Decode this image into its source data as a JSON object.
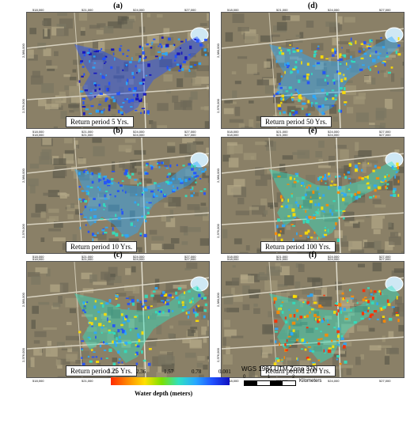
{
  "panels": [
    {
      "letter": "(a)",
      "label": "Return period 5 Yrs."
    },
    {
      "letter": "(d)",
      "label": "Return period 50 Yrs."
    },
    {
      "letter": "(b)",
      "label": "Return period 10 Yrs."
    },
    {
      "letter": "(e)",
      "label": "Return period 100 Yrs."
    },
    {
      "letter": "(c)",
      "label": "Return period 25 Yrs."
    },
    {
      "letter": "(f)",
      "label": "Return period 200 Yrs."
    }
  ],
  "x_ticks": [
    "518,000",
    "521,000",
    "524,000",
    "527,000"
  ],
  "y_ticks": [
    "2,380,000",
    "2,376,000"
  ],
  "legend": {
    "values": [
      "3.15",
      "2.36",
      "1.57",
      "0.78",
      "0.001"
    ],
    "title": "Water depth (meters)",
    "colors": [
      "#ff2a00",
      "#ffe000",
      "#2fe0c0",
      "#2050ff",
      "#1010c0"
    ]
  },
  "projection": "WGS 1984 UTM Zone 37N",
  "scale": {
    "ticks": [
      "0",
      "1",
      "2"
    ],
    "unit": "Kilometers"
  }
}
